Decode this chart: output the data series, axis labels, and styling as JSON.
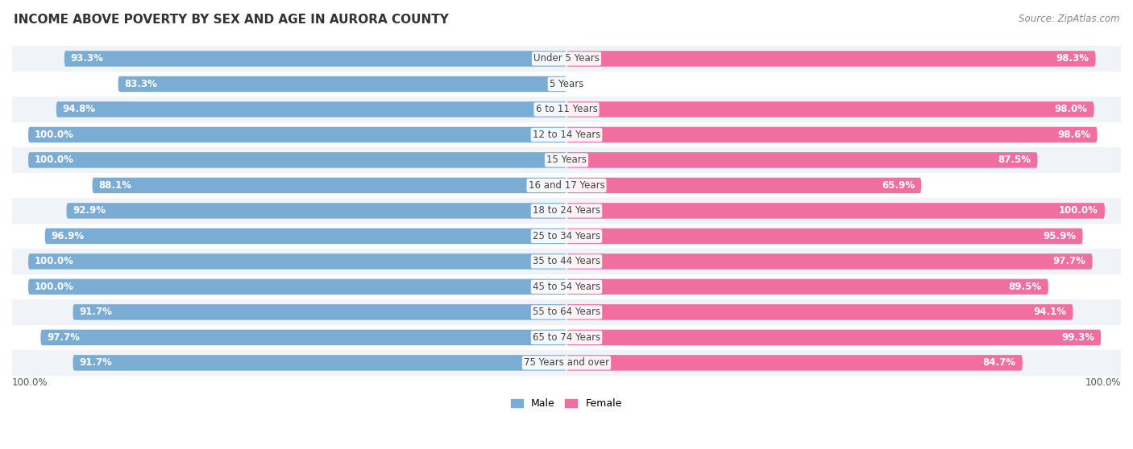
{
  "title": "INCOME ABOVE POVERTY BY SEX AND AGE IN AURORA COUNTY",
  "source": "Source: ZipAtlas.com",
  "categories": [
    "Under 5 Years",
    "5 Years",
    "6 to 11 Years",
    "12 to 14 Years",
    "15 Years",
    "16 and 17 Years",
    "18 to 24 Years",
    "25 to 34 Years",
    "35 to 44 Years",
    "45 to 54 Years",
    "55 to 64 Years",
    "65 to 74 Years",
    "75 Years and over"
  ],
  "male_values": [
    93.3,
    83.3,
    94.8,
    100.0,
    100.0,
    88.1,
    92.9,
    96.9,
    100.0,
    100.0,
    91.7,
    97.7,
    91.7
  ],
  "female_values": [
    98.3,
    0.0,
    98.0,
    98.6,
    87.5,
    65.9,
    100.0,
    95.9,
    97.7,
    89.5,
    94.1,
    99.3,
    84.7
  ],
  "male_color": "#7badd4",
  "female_color": "#f06fa0",
  "male_label": "Male",
  "female_label": "Female",
  "axis_label_left": "100.0%",
  "axis_label_right": "100.0%",
  "male_label_color": "#ffffff",
  "female_label_color": "#ffffff",
  "bar_height": 0.62,
  "row_bg_even": "#f0f4f8",
  "row_bg_odd": "#ffffff",
  "title_fontsize": 11,
  "label_fontsize": 8.5,
  "category_fontsize": 8.5,
  "source_fontsize": 8.5,
  "xlim": 103
}
